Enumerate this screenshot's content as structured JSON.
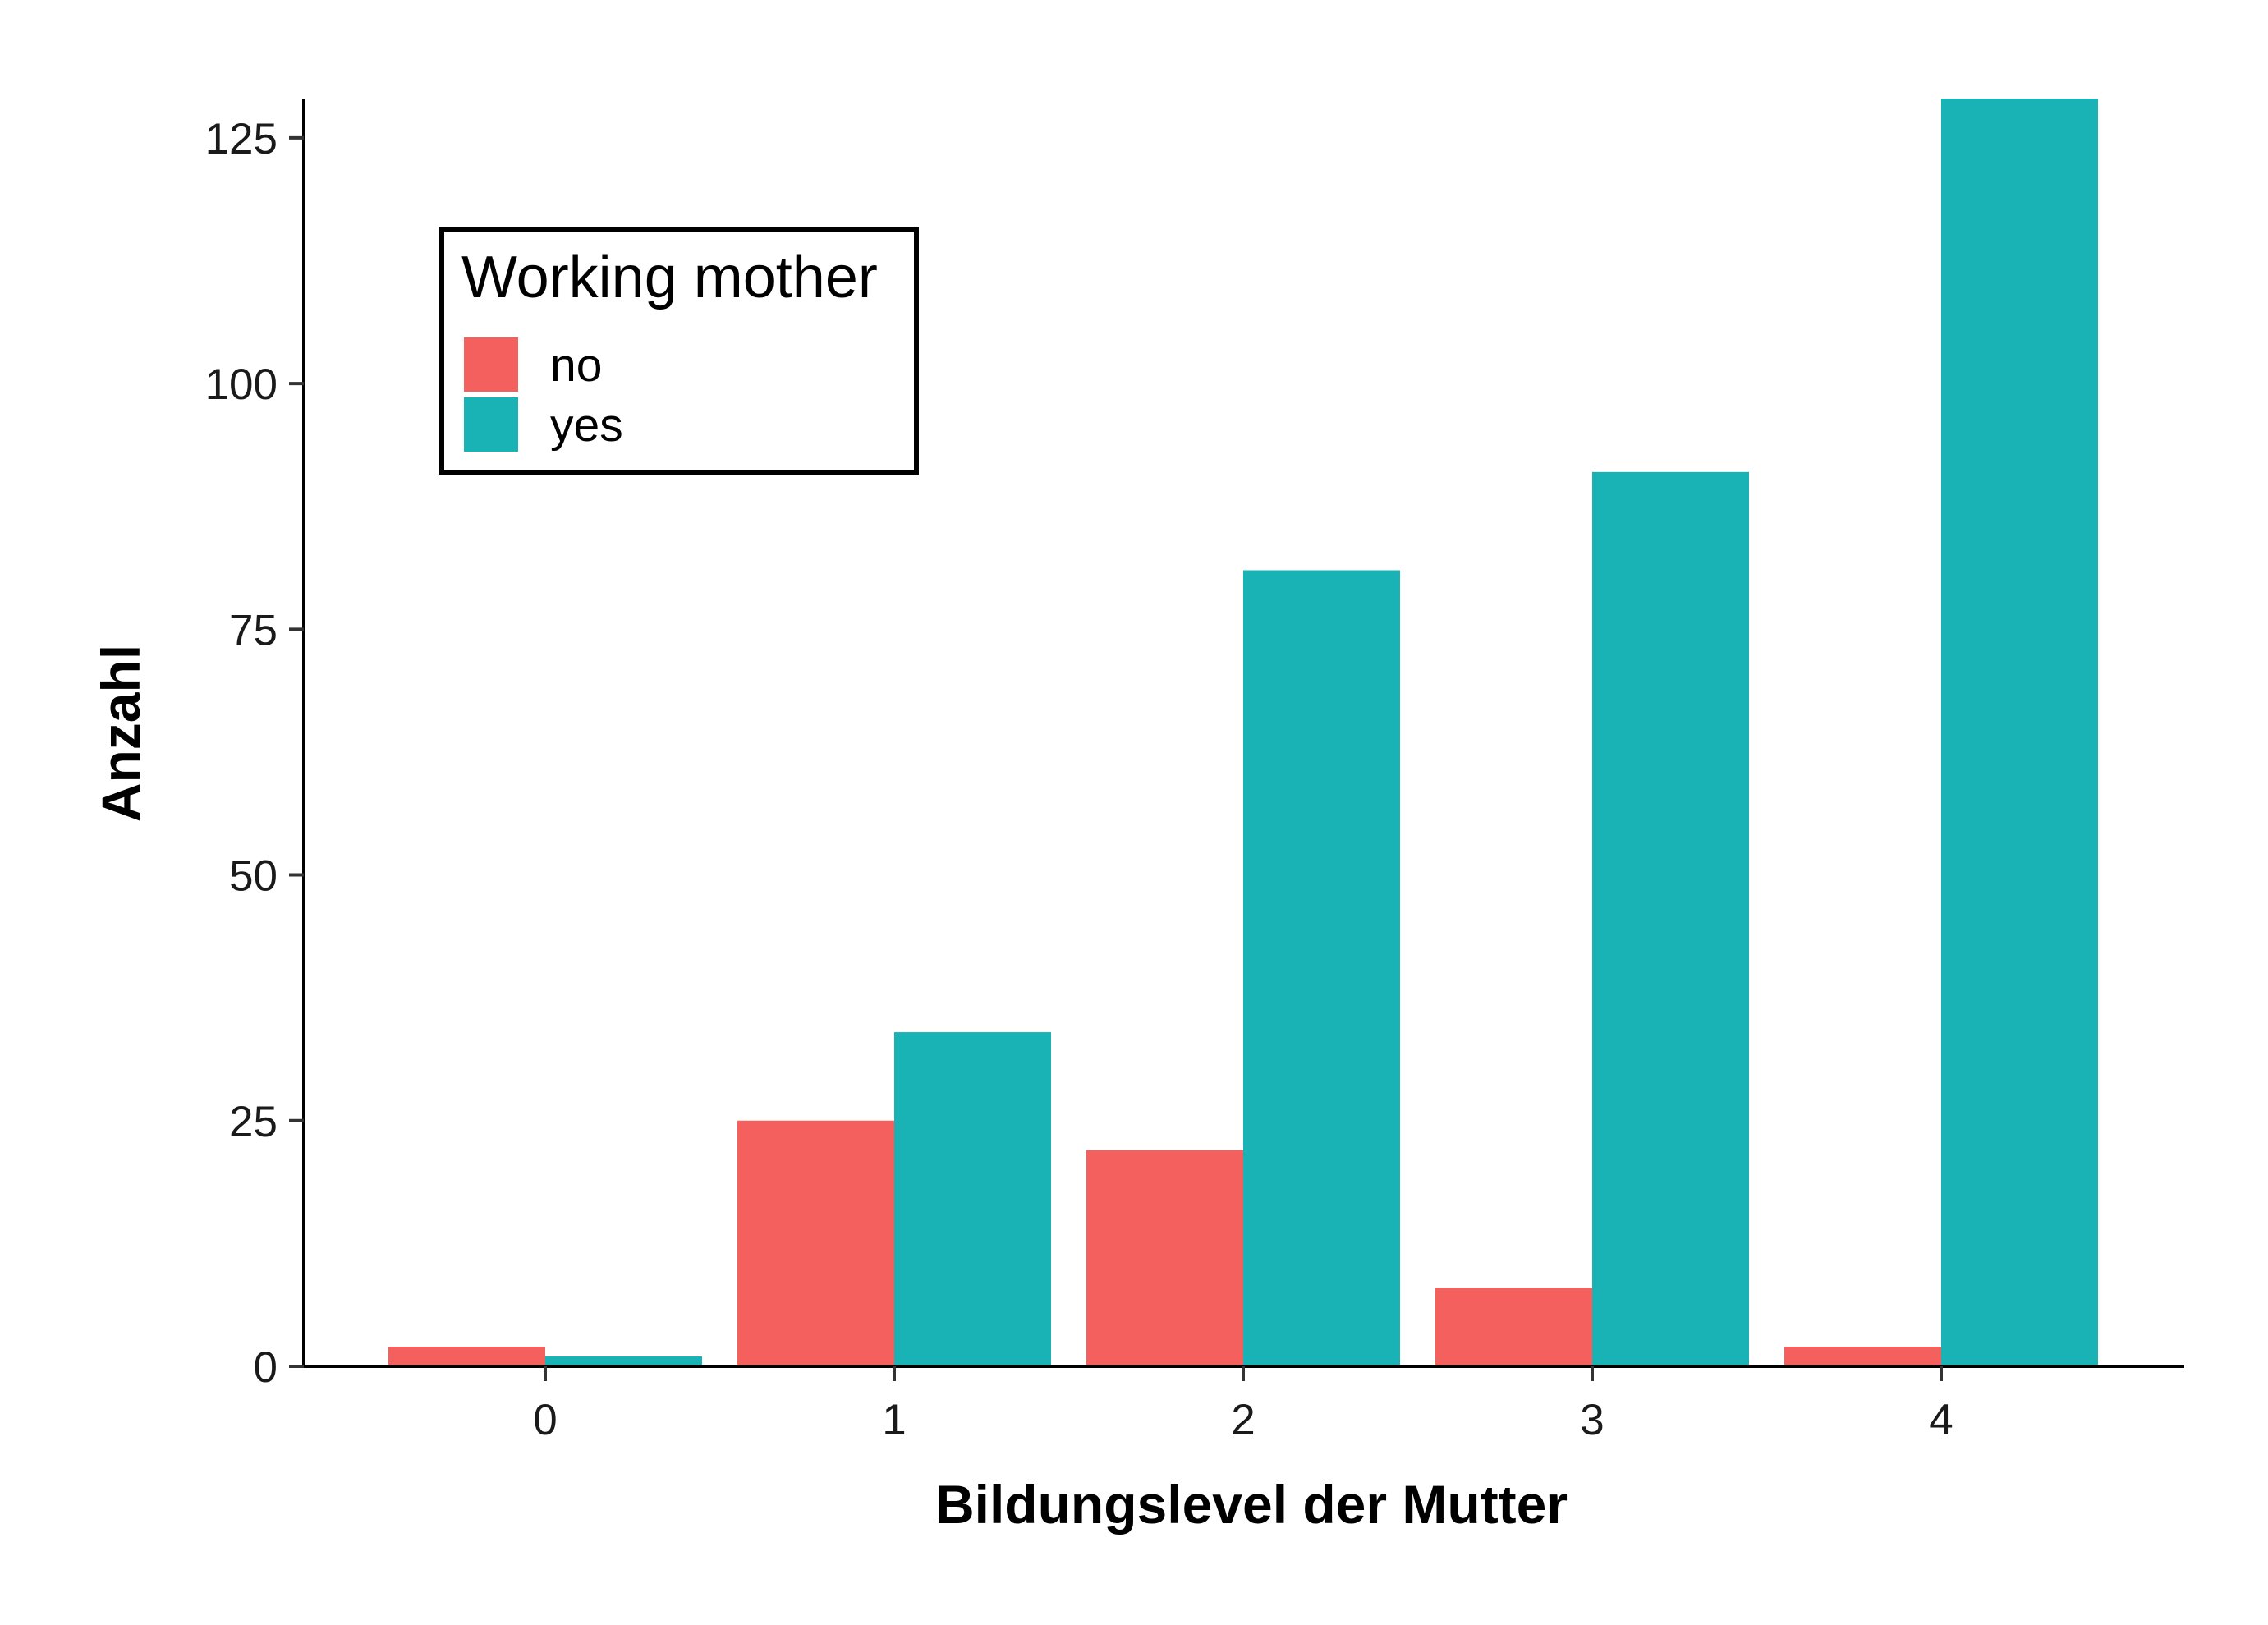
{
  "chart_data": {
    "type": "bar",
    "xlabel": "Bildungslevel der Mutter",
    "ylabel": "Anzahl",
    "categories": [
      "0",
      "1",
      "2",
      "3",
      "4"
    ],
    "series": [
      {
        "name": "no",
        "color": "#F3605D",
        "values": [
          2,
          25,
          22,
          8,
          2
        ]
      },
      {
        "name": "yes",
        "color": "#19B3B6",
        "values": [
          1,
          34,
          81,
          91,
          129
        ]
      }
    ],
    "ylim": [
      0,
      129
    ],
    "yticks": [
      0,
      25,
      50,
      75,
      100,
      125
    ],
    "grid": false,
    "legend": {
      "title": "Working mother",
      "placement": "top-left"
    }
  }
}
